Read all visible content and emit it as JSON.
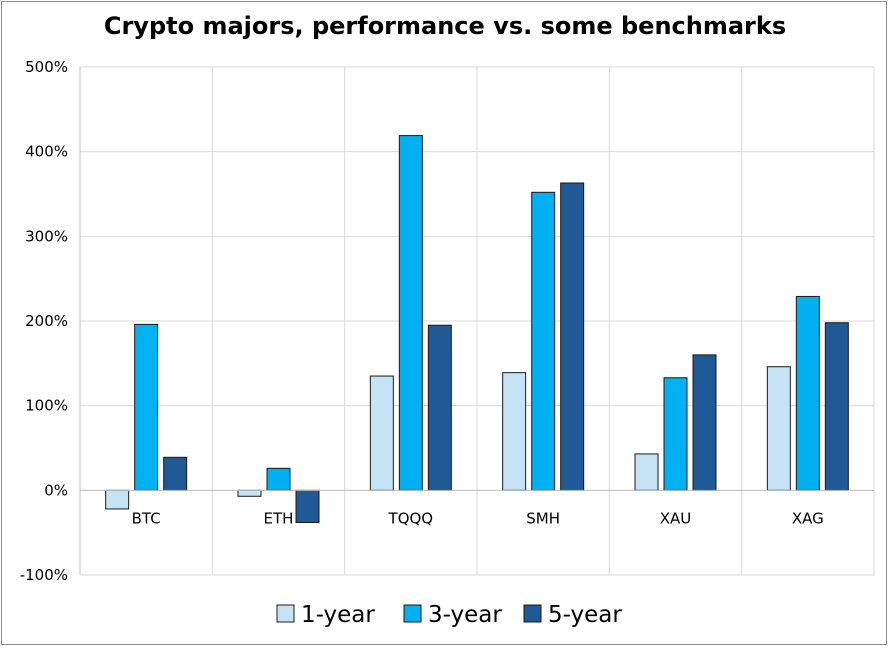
{
  "chart_data": {
    "type": "bar",
    "title": "Crypto majors, performance vs. some benchmarks",
    "categories": [
      "BTC",
      "ETH",
      "TQQQ",
      "SMH",
      "XAU",
      "XAG"
    ],
    "series": [
      {
        "name": "1-year",
        "color": "#c5e3f5",
        "values": [
          -22,
          -7,
          135,
          139,
          43,
          146
        ]
      },
      {
        "name": "3-year",
        "color": "#00b0f0",
        "values": [
          196,
          26,
          419,
          352,
          133,
          229
        ]
      },
      {
        "name": "5-year",
        "color": "#1f5a96",
        "values": [
          39,
          -38,
          195,
          363,
          160,
          198
        ]
      }
    ],
    "ylim": [
      -100,
      500
    ],
    "yticks": [
      -100,
      0,
      100,
      200,
      300,
      400,
      500
    ],
    "ytick_labels": [
      "-100%",
      "0%",
      "100%",
      "200%",
      "300%",
      "400%",
      "500%"
    ],
    "grid": true,
    "legend": "bottom"
  }
}
